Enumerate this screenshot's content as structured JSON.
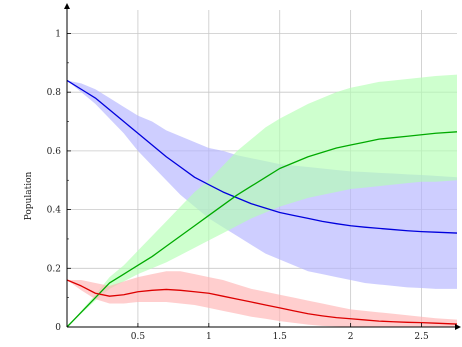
{
  "chart_data": {
    "type": "line",
    "title": "",
    "xlabel": "",
    "ylabel": "Population",
    "xlim": [
      0,
      2.75
    ],
    "ylim": [
      0,
      1.08
    ],
    "x_ticks": [
      0.5,
      1,
      1.5,
      2,
      2.5
    ],
    "x_tick_labels": [
      "0.5",
      "1",
      "1.5",
      "2",
      "2.5"
    ],
    "y_ticks": [
      0,
      0.2,
      0.4,
      0.6,
      0.8,
      1
    ],
    "y_tick_labels": [
      "0",
      "0.2",
      "0.4",
      "0.6",
      "0.8",
      "1"
    ],
    "grid": true,
    "legend": "none",
    "series": [
      {
        "color": "#0000dd",
        "band_color": "#b3b3ff",
        "x": [
          0,
          0.1,
          0.2,
          0.3,
          0.4,
          0.5,
          0.6,
          0.7,
          0.8,
          0.9,
          1.0,
          1.1,
          1.2,
          1.3,
          1.4,
          1.5,
          1.6,
          1.7,
          1.8,
          1.9,
          2.0,
          2.1,
          2.2,
          2.3,
          2.4,
          2.5,
          2.6,
          2.75
        ],
        "y": [
          0.84,
          0.81,
          0.78,
          0.74,
          0.7,
          0.66,
          0.62,
          0.58,
          0.545,
          0.51,
          0.485,
          0.46,
          0.44,
          0.42,
          0.405,
          0.39,
          0.38,
          0.37,
          0.36,
          0.352,
          0.345,
          0.34,
          0.336,
          0.332,
          0.328,
          0.325,
          0.323,
          0.32
        ],
        "lower": [
          0.84,
          0.8,
          0.76,
          0.71,
          0.66,
          0.6,
          0.55,
          0.5,
          0.45,
          0.41,
          0.37,
          0.34,
          0.31,
          0.28,
          0.25,
          0.23,
          0.21,
          0.19,
          0.18,
          0.17,
          0.16,
          0.15,
          0.145,
          0.14,
          0.135,
          0.133,
          0.13,
          0.13
        ],
        "upper": [
          0.84,
          0.83,
          0.81,
          0.78,
          0.75,
          0.72,
          0.7,
          0.67,
          0.65,
          0.63,
          0.61,
          0.6,
          0.585,
          0.575,
          0.565,
          0.555,
          0.55,
          0.545,
          0.54,
          0.535,
          0.53,
          0.528,
          0.525,
          0.523,
          0.52,
          0.518,
          0.515,
          0.51
        ]
      },
      {
        "color": "#00aa00",
        "band_color": "#b3ffb3",
        "x": [
          0,
          0.1,
          0.2,
          0.3,
          0.4,
          0.5,
          0.6,
          0.7,
          0.8,
          0.9,
          1.0,
          1.1,
          1.2,
          1.3,
          1.4,
          1.5,
          1.6,
          1.7,
          1.8,
          1.9,
          2.0,
          2.1,
          2.2,
          2.3,
          2.4,
          2.5,
          2.6,
          2.75
        ],
        "y": [
          0.0,
          0.05,
          0.1,
          0.15,
          0.18,
          0.21,
          0.24,
          0.275,
          0.31,
          0.345,
          0.38,
          0.415,
          0.45,
          0.48,
          0.51,
          0.54,
          0.56,
          0.58,
          0.595,
          0.61,
          0.62,
          0.63,
          0.64,
          0.645,
          0.65,
          0.655,
          0.66,
          0.665
        ],
        "lower": [
          0.0,
          0.045,
          0.09,
          0.13,
          0.155,
          0.18,
          0.2,
          0.22,
          0.245,
          0.27,
          0.295,
          0.32,
          0.345,
          0.37,
          0.39,
          0.41,
          0.425,
          0.44,
          0.45,
          0.46,
          0.47,
          0.475,
          0.48,
          0.485,
          0.49,
          0.495,
          0.495,
          0.5
        ],
        "upper": [
          0.0,
          0.055,
          0.11,
          0.17,
          0.21,
          0.26,
          0.31,
          0.36,
          0.41,
          0.46,
          0.5,
          0.55,
          0.6,
          0.64,
          0.68,
          0.71,
          0.735,
          0.76,
          0.78,
          0.8,
          0.815,
          0.825,
          0.835,
          0.84,
          0.845,
          0.85,
          0.855,
          0.86
        ]
      },
      {
        "color": "#dd0000",
        "band_color": "#ffb3b3",
        "x": [
          0,
          0.1,
          0.2,
          0.3,
          0.4,
          0.5,
          0.6,
          0.7,
          0.8,
          0.9,
          1.0,
          1.1,
          1.2,
          1.3,
          1.4,
          1.5,
          1.6,
          1.7,
          1.8,
          1.9,
          2.0,
          2.1,
          2.2,
          2.3,
          2.4,
          2.5,
          2.6,
          2.75
        ],
        "y": [
          0.16,
          0.14,
          0.115,
          0.105,
          0.11,
          0.12,
          0.125,
          0.128,
          0.125,
          0.12,
          0.115,
          0.105,
          0.095,
          0.085,
          0.075,
          0.065,
          0.055,
          0.045,
          0.038,
          0.032,
          0.028,
          0.024,
          0.02,
          0.018,
          0.016,
          0.015,
          0.013,
          0.01
        ],
        "lower": [
          0.16,
          0.125,
          0.095,
          0.08,
          0.08,
          0.085,
          0.085,
          0.085,
          0.08,
          0.075,
          0.065,
          0.055,
          0.045,
          0.035,
          0.028,
          0.02,
          0.014,
          0.008,
          0.004,
          0.002,
          0.001,
          0.0,
          0.0,
          0.0,
          0.0,
          0.0,
          0.0,
          0.0
        ],
        "upper": [
          0.16,
          0.16,
          0.15,
          0.14,
          0.155,
          0.17,
          0.18,
          0.19,
          0.19,
          0.18,
          0.17,
          0.16,
          0.145,
          0.13,
          0.12,
          0.11,
          0.1,
          0.09,
          0.08,
          0.07,
          0.06,
          0.055,
          0.05,
          0.045,
          0.04,
          0.035,
          0.03,
          0.025
        ]
      }
    ]
  }
}
